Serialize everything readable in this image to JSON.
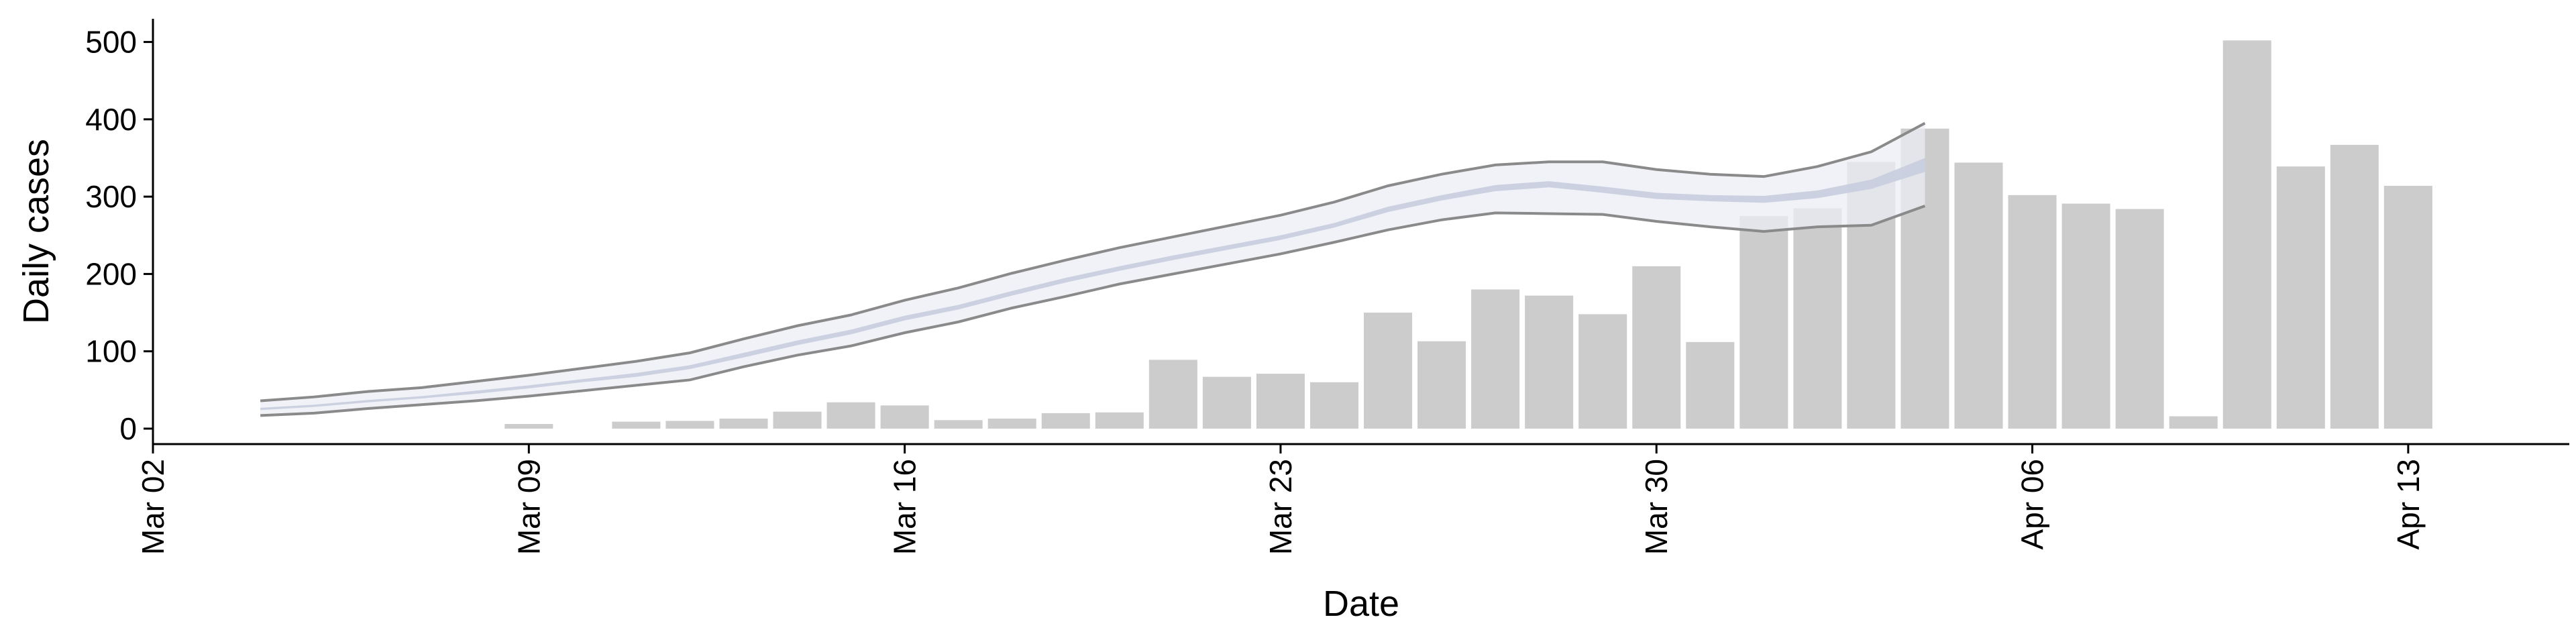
{
  "chart_data": {
    "type": "bar",
    "title": "",
    "xlabel": "Date",
    "ylabel": "Daily cases",
    "x_ticks": [
      "Mar 02",
      "Mar 09",
      "Mar 16",
      "Mar 23",
      "Mar 30",
      "Apr 06",
      "Apr 13"
    ],
    "y_ticks": [
      "0",
      "100",
      "200",
      "300",
      "400",
      "500"
    ],
    "xlim": [
      "2020-03-02",
      "2020-04-16"
    ],
    "ylim": [
      -20,
      530
    ],
    "grid": false,
    "legend": "none",
    "colors": {
      "bars": "#cccccc",
      "band_outer_fill": "#eceef4",
      "band_inner_fill": "#c8cddf",
      "band_outer_line": "#8a8a8a"
    },
    "series": [
      {
        "type": "bar",
        "dates": [
          "2020-03-09",
          "2020-03-11",
          "2020-03-12",
          "2020-03-13",
          "2020-03-14",
          "2020-03-15",
          "2020-03-16",
          "2020-03-17",
          "2020-03-18",
          "2020-03-19",
          "2020-03-20",
          "2020-03-21",
          "2020-03-22",
          "2020-03-23",
          "2020-03-24",
          "2020-03-25",
          "2020-03-26",
          "2020-03-27",
          "2020-03-28",
          "2020-03-29",
          "2020-03-30",
          "2020-03-31",
          "2020-04-01",
          "2020-04-02",
          "2020-04-03",
          "2020-04-04",
          "2020-04-05",
          "2020-04-06",
          "2020-04-07",
          "2020-04-08",
          "2020-04-09",
          "2020-04-10",
          "2020-04-11",
          "2020-04-12",
          "2020-04-13"
        ],
        "values": [
          6,
          9,
          10,
          13,
          22,
          34,
          30,
          11,
          13,
          20,
          21,
          89,
          67,
          71,
          60,
          150,
          113,
          180,
          172,
          148,
          210,
          112,
          275,
          285,
          345,
          388,
          344,
          302,
          291,
          284,
          16,
          502,
          339,
          367,
          314
        ]
      },
      {
        "type": "area",
        "dates": [
          "2020-03-04",
          "2020-03-05",
          "2020-03-06",
          "2020-03-07",
          "2020-03-08",
          "2020-03-09",
          "2020-03-10",
          "2020-03-11",
          "2020-03-12",
          "2020-03-13",
          "2020-03-14",
          "2020-03-15",
          "2020-03-16",
          "2020-03-17",
          "2020-03-18",
          "2020-03-19",
          "2020-03-20",
          "2020-03-21",
          "2020-03-22",
          "2020-03-23",
          "2020-03-24",
          "2020-03-25",
          "2020-03-26",
          "2020-03-27",
          "2020-03-28",
          "2020-03-29",
          "2020-03-30",
          "2020-03-31",
          "2020-04-01",
          "2020-04-02",
          "2020-04-03",
          "2020-04-04"
        ],
        "upper_outer": [
          36,
          41,
          48,
          53,
          61,
          69,
          78,
          87,
          98,
          116,
          133,
          147,
          166,
          182,
          201,
          218,
          234,
          248,
          262,
          276,
          293,
          314,
          329,
          341,
          345,
          345,
          335,
          329,
          326,
          339,
          358,
          395
        ],
        "upper_inner": [
          27,
          31,
          37,
          42,
          49,
          56,
          64,
          72,
          82,
          98,
          114,
          128,
          146,
          160,
          178,
          195,
          210,
          224,
          237,
          250,
          266,
          287,
          302,
          315,
          320,
          313,
          305,
          302,
          301,
          308,
          322,
          350
        ],
        "lower_inner": [
          24,
          28,
          34,
          39,
          45,
          52,
          60,
          67,
          77,
          92,
          108,
          122,
          140,
          154,
          172,
          189,
          204,
          218,
          231,
          244,
          260,
          280,
          295,
          307,
          312,
          305,
          297,
          294,
          292,
          298,
          310,
          332
        ],
        "lower_outer": [
          17,
          20,
          26,
          31,
          36,
          42,
          49,
          56,
          63,
          80,
          95,
          107,
          124,
          138,
          156,
          171,
          187,
          200,
          213,
          226,
          241,
          257,
          270,
          279,
          278,
          277,
          268,
          261,
          255,
          261,
          263,
          288
        ]
      }
    ]
  }
}
